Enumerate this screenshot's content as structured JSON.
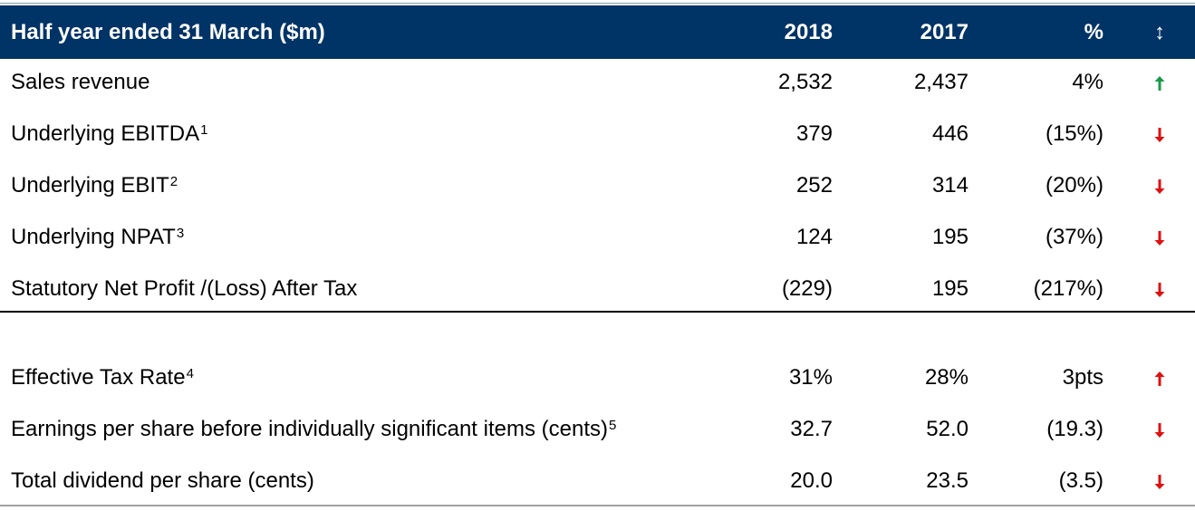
{
  "header": {
    "title": "Half year ended 31 March ($m)",
    "col_2018": "2018",
    "col_2017": "2017",
    "col_pct": "%",
    "col_arrow": "↕"
  },
  "rows": [
    {
      "label": "Sales revenue",
      "sup": "",
      "v2018": "2,532",
      "v2017": "2,437",
      "pct": "4%",
      "direction": "up",
      "color": "#1a9a4a"
    },
    {
      "label": "Underlying EBITDA",
      "sup": "1",
      "v2018": "379",
      "v2017": "446",
      "pct": "(15%)",
      "direction": "down",
      "color": "#e01010"
    },
    {
      "label": "Underlying EBIT",
      "sup": "2",
      "v2018": "252",
      "v2017": "314",
      "pct": "(20%)",
      "direction": "down",
      "color": "#e01010"
    },
    {
      "label": "Underlying NPAT",
      "sup": "3",
      "v2018": "124",
      "v2017": "195",
      "pct": "(37%)",
      "direction": "down",
      "color": "#e01010"
    },
    {
      "label": "Statutory Net Profit /(Loss) After Tax",
      "sup": "",
      "v2018": "(229)",
      "v2017": "195",
      "pct": "(217%)",
      "direction": "down",
      "color": "#e01010"
    },
    {
      "label": "Effective Tax Rate",
      "sup": "4",
      "v2018": "31%",
      "v2017": "28%",
      "pct": "3pts",
      "direction": "up",
      "color": "#e01010"
    },
    {
      "label": "Earnings per share before individually significant items (cents)",
      "sup": "5",
      "v2018": "32.7",
      "v2017": "52.0",
      "pct": "(19.3)",
      "direction": "down",
      "color": "#e01010"
    },
    {
      "label": "Total dividend per share (cents)",
      "sup": "",
      "v2018": "20.0",
      "v2017": "23.5",
      "pct": "(3.5)",
      "direction": "down",
      "color": "#e01010"
    }
  ],
  "colors": {
    "header_bg": "#003366",
    "header_text": "#ffffff",
    "positive_green": "#1a9a4a",
    "negative_red": "#e01010"
  }
}
